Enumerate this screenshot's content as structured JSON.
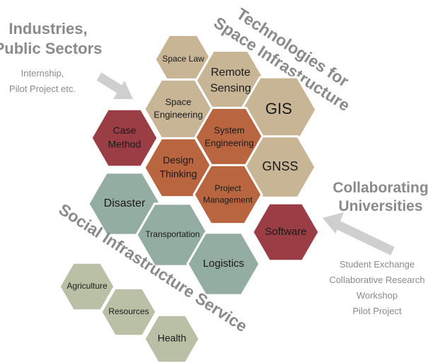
{
  "colors": {
    "tan": "#c8b596",
    "rust": "#b9653f",
    "maroon": "#9b3d44",
    "teal": "#93ada2",
    "sage": "#b9c0a6",
    "grey_text": "#8a8a8a",
    "arrow": "#cfcfcf"
  },
  "headings": {
    "industries_line1": "Industries,",
    "industries_line2": "Public Sectors",
    "industries_sub_line1": "Internship,",
    "industries_sub_line2": "Pilot Project etc.",
    "tech_line1": "Technologies for",
    "tech_line2": "Space Infrastructure",
    "collab_line1": "Collaborating",
    "collab_line2": "Universities",
    "collab_sub": [
      "Student Exchange",
      "Collaborative Research",
      "Workshop",
      "Pilot Project"
    ],
    "social": "Social Infrastructure Service"
  },
  "hexagons": [
    {
      "id": "space-law",
      "lines": [
        "Space Law"
      ],
      "color": "tan"
    },
    {
      "id": "remote-sensing",
      "lines": [
        "Remote",
        "Sensing"
      ],
      "color": "tan"
    },
    {
      "id": "space-engineering",
      "lines": [
        "Space",
        "Engineering"
      ],
      "color": "tan"
    },
    {
      "id": "gis",
      "lines": [
        "GIS"
      ],
      "color": "tan"
    },
    {
      "id": "system-engineering",
      "lines": [
        "System",
        "Engineering"
      ],
      "color": "rust"
    },
    {
      "id": "case-method",
      "lines": [
        "Case",
        "Method"
      ],
      "color": "maroon"
    },
    {
      "id": "design-thinking",
      "lines": [
        "Design",
        "Thinking"
      ],
      "color": "rust"
    },
    {
      "id": "gnss",
      "lines": [
        "GNSS"
      ],
      "color": "tan"
    },
    {
      "id": "project-management",
      "lines": [
        "Project",
        "Management"
      ],
      "color": "rust"
    },
    {
      "id": "disaster",
      "lines": [
        "Disaster"
      ],
      "color": "teal"
    },
    {
      "id": "software",
      "lines": [
        "Software"
      ],
      "color": "maroon"
    },
    {
      "id": "transportation",
      "lines": [
        "Transportation"
      ],
      "color": "teal"
    },
    {
      "id": "logistics",
      "lines": [
        "Logistics"
      ],
      "color": "teal"
    },
    {
      "id": "agriculture",
      "lines": [
        "Agriculture"
      ],
      "color": "sage"
    },
    {
      "id": "resources",
      "lines": [
        "Resources"
      ],
      "color": "sage"
    },
    {
      "id": "health",
      "lines": [
        "Health"
      ],
      "color": "sage"
    }
  ]
}
